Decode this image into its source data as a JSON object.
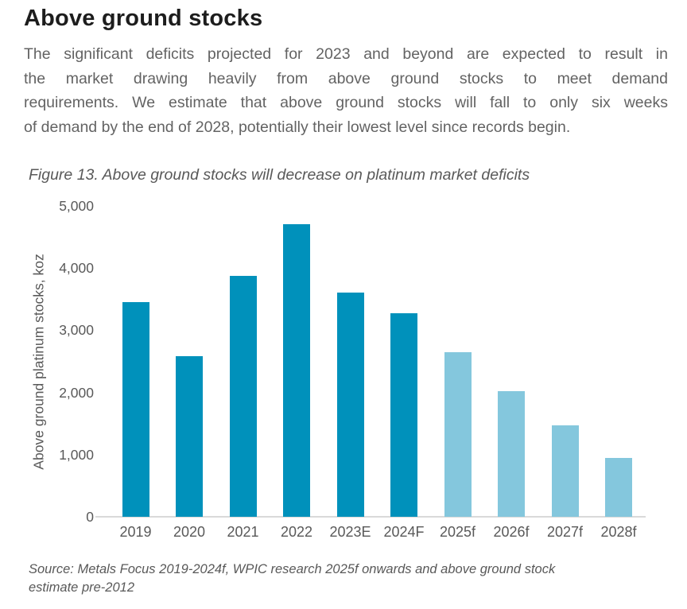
{
  "page": {
    "title": "Above ground stocks",
    "paragraph_lines": [
      "The significant deficits projected for 2023 and beyond are expected to result in",
      "the market drawing heavily from above ground stocks to meet demand",
      "requirements. We estimate that above ground stocks will fall to only six weeks",
      "of demand by the end of 2028, potentially their lowest level since records begin."
    ],
    "figure_caption": "Figure 13. Above ground stocks will decrease on platinum market deficits",
    "source_lines": [
      "Source: Metals Focus 2019-2024f, WPIC research 2025f onwards and above ground stock",
      "estimate pre-2012"
    ]
  },
  "chart_data": {
    "type": "bar",
    "title": "Figure 13. Above ground stocks will decrease on platinum market deficits",
    "categories": [
      "2019",
      "2020",
      "2021",
      "2022",
      "2023E",
      "2024F",
      "2025f",
      "2026f",
      "2027f",
      "2028f"
    ],
    "values": [
      3450,
      2580,
      3880,
      4700,
      3600,
      3270,
      2650,
      2020,
      1470,
      950
    ],
    "bar_colors": [
      "#0091bb",
      "#0091bb",
      "#0091bb",
      "#0091bb",
      "#0091bb",
      "#0091bb",
      "#84c7dd",
      "#84c7dd",
      "#84c7dd",
      "#84c7dd"
    ],
    "color_meaning": {
      "#0091bb": "actual/estimate 2019-2024F",
      "#84c7dd": "forecast 2025f-2028f"
    },
    "xlabel": "",
    "ylabel": "Above ground platinum stocks, koz",
    "ylim": [
      0,
      5000
    ],
    "ytick_values": [
      0,
      1000,
      2000,
      3000,
      4000,
      5000
    ],
    "ytick_labels": [
      "0",
      "1,000",
      "2,000",
      "3,000",
      "4,000",
      "5,000"
    ],
    "grid": false,
    "legend": false,
    "axis_line_color": "#d9d9d9"
  }
}
